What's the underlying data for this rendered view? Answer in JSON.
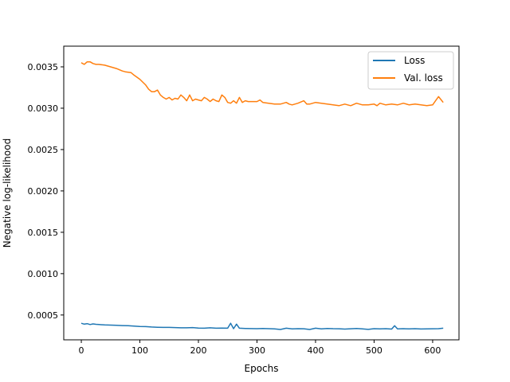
{
  "chart_data": {
    "type": "line",
    "title": "",
    "xlabel": "Epochs",
    "ylabel": "Negative log-likelihood",
    "xlim": [
      -30,
      645
    ],
    "ylim": [
      0.0002,
      0.00375
    ],
    "xticks": [
      0,
      100,
      200,
      300,
      400,
      500,
      600
    ],
    "xtick_labels": [
      "0",
      "100",
      "200",
      "300",
      "400",
      "500",
      "600"
    ],
    "yticks": [
      0.0005,
      0.001,
      0.0015,
      0.002,
      0.0025,
      0.003,
      0.0035
    ],
    "ytick_labels": [
      "0.0005",
      "0.0010",
      "0.0015",
      "0.0020",
      "0.0025",
      "0.0030",
      "0.0035"
    ],
    "grid": false,
    "legend_position": "upper-right",
    "series": [
      {
        "name": "Loss",
        "color": "#1f77b4",
        "x": [
          0,
          5,
          10,
          15,
          20,
          25,
          30,
          40,
          50,
          60,
          70,
          80,
          90,
          100,
          110,
          120,
          130,
          140,
          150,
          160,
          170,
          180,
          190,
          200,
          210,
          220,
          230,
          240,
          250,
          255,
          260,
          265,
          270,
          280,
          290,
          300,
          310,
          320,
          330,
          340,
          350,
          360,
          370,
          380,
          390,
          400,
          410,
          420,
          430,
          440,
          450,
          460,
          470,
          480,
          490,
          500,
          510,
          520,
          530,
          535,
          540,
          550,
          560,
          570,
          580,
          590,
          600,
          610,
          618
        ],
        "values": [
          0.0004,
          0.00039,
          0.000395,
          0.000385,
          0.000392,
          0.000388,
          0.000385,
          0.00038,
          0.000378,
          0.000375,
          0.000372,
          0.00037,
          0.000365,
          0.000362,
          0.00036,
          0.000355,
          0.000352,
          0.00035,
          0.00035,
          0.000348,
          0.000345,
          0.000345,
          0.000348,
          0.000342,
          0.00034,
          0.000345,
          0.00034,
          0.000342,
          0.00034,
          0.0004,
          0.000335,
          0.00039,
          0.00034,
          0.000338,
          0.000336,
          0.000335,
          0.000338,
          0.000335,
          0.000333,
          0.000325,
          0.00034,
          0.000332,
          0.000335,
          0.000334,
          0.000325,
          0.00034,
          0.000333,
          0.000338,
          0.000335,
          0.000334,
          0.00033,
          0.000334,
          0.000338,
          0.000332,
          0.000326,
          0.000335,
          0.000333,
          0.000335,
          0.00033,
          0.00037,
          0.000333,
          0.000335,
          0.000332,
          0.000335,
          0.000331,
          0.000333,
          0.000334,
          0.000335,
          0.00034
        ]
      },
      {
        "name": "Val. loss",
        "color": "#ff7f0e",
        "x": [
          0,
          5,
          10,
          15,
          20,
          25,
          30,
          40,
          50,
          60,
          70,
          75,
          85,
          90,
          100,
          110,
          115,
          120,
          125,
          130,
          135,
          140,
          145,
          150,
          155,
          160,
          165,
          170,
          175,
          180,
          185,
          190,
          195,
          200,
          205,
          210,
          215,
          220,
          225,
          230,
          235,
          240,
          245,
          250,
          255,
          260,
          265,
          270,
          275,
          280,
          285,
          290,
          300,
          305,
          310,
          320,
          330,
          340,
          350,
          355,
          360,
          370,
          380,
          385,
          390,
          400,
          410,
          420,
          430,
          440,
          450,
          460,
          470,
          480,
          490,
          500,
          505,
          510,
          520,
          530,
          540,
          550,
          560,
          570,
          580,
          590,
          600,
          605,
          610,
          618
        ],
        "values": [
          0.00355,
          0.00353,
          0.00356,
          0.00356,
          0.00354,
          0.00353,
          0.00353,
          0.00352,
          0.0035,
          0.00348,
          0.00345,
          0.00344,
          0.00343,
          0.0034,
          0.00335,
          0.00328,
          0.00323,
          0.0032,
          0.0032,
          0.00322,
          0.00316,
          0.00313,
          0.00311,
          0.00313,
          0.0031,
          0.00312,
          0.00311,
          0.00316,
          0.00313,
          0.00309,
          0.00316,
          0.00309,
          0.00311,
          0.0031,
          0.00309,
          0.00313,
          0.00311,
          0.00308,
          0.00311,
          0.00309,
          0.00308,
          0.00316,
          0.00313,
          0.00307,
          0.00306,
          0.00309,
          0.00306,
          0.00313,
          0.00307,
          0.00309,
          0.00308,
          0.00308,
          0.00308,
          0.0031,
          0.00307,
          0.00306,
          0.00305,
          0.00305,
          0.00307,
          0.00305,
          0.00304,
          0.00306,
          0.00309,
          0.00305,
          0.00305,
          0.00307,
          0.00306,
          0.00305,
          0.00304,
          0.00303,
          0.00305,
          0.00303,
          0.00306,
          0.00304,
          0.00304,
          0.00305,
          0.00303,
          0.00306,
          0.00304,
          0.00305,
          0.00304,
          0.00306,
          0.00304,
          0.00305,
          0.00304,
          0.00303,
          0.00304,
          0.00309,
          0.00314,
          0.00307
        ]
      }
    ]
  }
}
